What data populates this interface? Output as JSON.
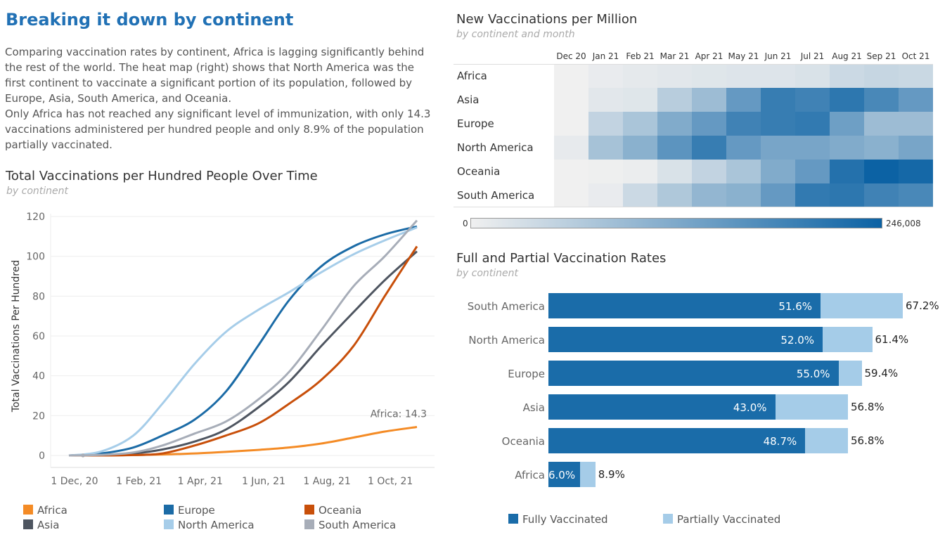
{
  "header": {
    "title": "Breaking it down by continent",
    "intro_p1": "Comparing vaccination rates by continent, Africa is lagging significantly behind the rest of the world. The heat map (right) shows that North America was the first continent to vaccinate a significant portion of its population, followed by Europe, Asia, South America, and Oceania.",
    "intro_p2": "Only Africa has not reached any significant level of immunization, with only 14.3 vaccinations administered per hundred people and only 8.9% of the population partially vaccinated."
  },
  "colors": {
    "Africa": "#f48b25",
    "Asia": "#4e5560",
    "Europe": "#1b6ba6",
    "North America": "#a6cde9",
    "Oceania": "#c84f0a",
    "South America": "#a7adb8",
    "fully": "#1a6ca9",
    "partial": "#a5cce8"
  },
  "line_chart": {
    "title": "Total Vaccinations per Hundred People Over Time",
    "subtitle": "by continent",
    "annotation": "Africa:  14.3",
    "legend": [
      "Africa",
      "Europe",
      "Oceania",
      "Asia",
      "North America",
      "South America"
    ]
  },
  "heatmap": {
    "title": "New Vaccinations per Million",
    "subtitle": "by continent and month",
    "scale_min": "0",
    "scale_max": "246,008"
  },
  "bar_chart": {
    "title": "Full and Partial Vaccination Rates",
    "subtitle": "by continent",
    "legend_fully": "Fully Vaccinated",
    "legend_partial": "Partially Vaccinated"
  },
  "chart_data": [
    {
      "type": "line",
      "title": "Total Vaccinations per Hundred People Over Time",
      "subtitle": "by continent",
      "xlabel": "",
      "ylabel": "Total Vaccinations Per Hundred",
      "x_ticks": [
        "1 Dec, 20",
        "1 Feb, 21",
        "1 Apr, 21",
        "1 Jun, 21",
        "1 Aug, 21",
        "1 Oct, 21"
      ],
      "y_ticks": [
        0,
        20,
        40,
        60,
        80,
        100,
        120
      ],
      "ylim": [
        0,
        120
      ],
      "x_dates": [
        "2020-12-01",
        "2021-01-01",
        "2021-02-01",
        "2021-03-01",
        "2021-04-01",
        "2021-05-01",
        "2021-06-01",
        "2021-07-01",
        "2021-08-01",
        "2021-09-01",
        "2021-10-01",
        "2021-11-01"
      ],
      "series": [
        {
          "name": "Africa",
          "values": [
            0,
            0,
            0.2,
            0.5,
            1,
            1.8,
            2.8,
            4,
            6,
            9,
            12,
            14.3
          ]
        },
        {
          "name": "Asia",
          "values": [
            0,
            0.3,
            1,
            3,
            7,
            13,
            24,
            37,
            55,
            72,
            88,
            102.5
          ]
        },
        {
          "name": "Europe",
          "values": [
            0,
            1,
            4,
            10,
            18,
            32,
            55,
            78,
            95,
            105,
            111,
            115
          ]
        },
        {
          "name": "North America",
          "values": [
            0,
            2,
            10,
            26,
            46,
            62,
            73,
            82,
            92,
            101,
            108,
            114.5
          ]
        },
        {
          "name": "Oceania",
          "values": [
            0,
            0,
            0.2,
            1,
            5,
            10,
            16,
            26,
            38,
            55,
            80,
            105
          ]
        },
        {
          "name": "South America",
          "values": [
            0,
            0.3,
            1.5,
            5,
            11,
            17,
            28,
            42,
            63,
            85,
            100,
            118
          ]
        }
      ]
    },
    {
      "type": "heatmap",
      "title": "New Vaccinations per Million",
      "subtitle": "by continent and month",
      "columns": [
        "Dec 20",
        "Jan 21",
        "Feb 21",
        "Mar 21",
        "Apr 21",
        "May 21",
        "Jun 21",
        "Jul 21",
        "Aug 21",
        "Sep 21",
        "Oct 21"
      ],
      "rows": [
        "Africa",
        "Asia",
        "Europe",
        "North America",
        "Oceania",
        "South America"
      ],
      "values": [
        [
          0,
          8000,
          12000,
          15000,
          18000,
          20000,
          20000,
          25000,
          40000,
          45000,
          42000
        ],
        [
          0,
          15000,
          18000,
          60000,
          90000,
          150000,
          200000,
          190000,
          210000,
          180000,
          150000
        ],
        [
          0,
          50000,
          75000,
          120000,
          150000,
          190000,
          200000,
          205000,
          140000,
          90000,
          90000
        ],
        [
          10000,
          80000,
          110000,
          160000,
          200000,
          150000,
          130000,
          130000,
          120000,
          110000,
          130000
        ],
        [
          0,
          2000,
          5000,
          25000,
          50000,
          75000,
          120000,
          150000,
          220000,
          246008,
          236000
        ],
        [
          0,
          8000,
          40000,
          70000,
          100000,
          110000,
          150000,
          205000,
          210000,
          190000,
          180000
        ]
      ],
      "scale": [
        0,
        246008
      ]
    },
    {
      "type": "bar",
      "title": "Full and Partial Vaccination Rates",
      "subtitle": "by continent",
      "categories": [
        "South America",
        "North America",
        "Europe",
        "Asia",
        "Oceania",
        "Africa"
      ],
      "series": [
        {
          "name": "Fully Vaccinated",
          "values": [
            51.6,
            52.0,
            55.0,
            43.0,
            48.7,
            6.0
          ],
          "labels": [
            "51.6%",
            "52.0%",
            "55.0%",
            "43.0%",
            "48.7%",
            "6.0%"
          ]
        },
        {
          "name": "Partially Vaccinated",
          "values": [
            67.2,
            61.4,
            59.4,
            56.8,
            56.8,
            8.9
          ],
          "labels": [
            "67.2%",
            "61.4%",
            "59.4%",
            "56.8%",
            "56.8%",
            "8.9%"
          ]
        }
      ]
    }
  ]
}
